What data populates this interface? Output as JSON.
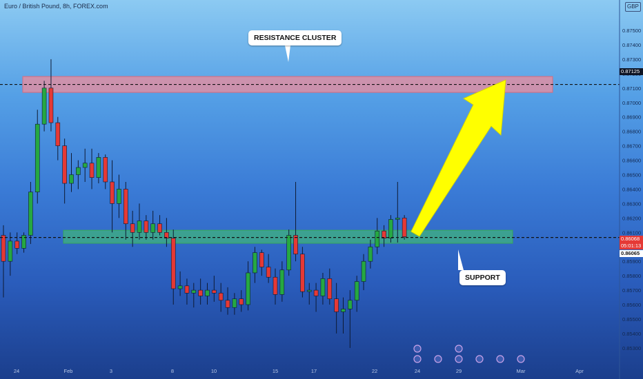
{
  "symbol_title": "Euro / British Pound, 8h, FOREX.com",
  "currency_badge": "GBP",
  "annotations": {
    "resistance_label": "RESISTANCE CLUSTER",
    "support_label": "SUPPORT"
  },
  "price_tags": {
    "resistance_level": "0.87125",
    "current_price": "0.86068",
    "countdown": "05:01:13",
    "support_level": "0.86065"
  },
  "colors": {
    "up_candle": "#26a842",
    "down_candle": "#e53935",
    "resistance_zone": "#f28b9a",
    "support_zone": "#43c46a",
    "arrow": "#ffff00"
  },
  "chart_data": {
    "type": "candlestick",
    "y_axis_ticks": [
      "0.87500",
      "0.87400",
      "0.87300",
      "0.87200",
      "0.87100",
      "0.87000",
      "0.86900",
      "0.86800",
      "0.86700",
      "0.86600",
      "0.86500",
      "0.86400",
      "0.86300",
      "0.86200",
      "0.86100",
      "0.86000",
      "0.85900",
      "0.85800",
      "0.85700",
      "0.85600",
      "0.85500",
      "0.85400",
      "0.85300"
    ],
    "y_axis_tick_values": [
      0.875,
      0.874,
      0.873,
      0.872,
      0.871,
      0.87,
      0.869,
      0.868,
      0.867,
      0.866,
      0.865,
      0.864,
      0.863,
      0.862,
      0.861,
      0.86,
      0.859,
      0.858,
      0.857,
      0.856,
      0.855,
      0.854,
      0.853
    ],
    "x_axis_ticks": [
      "24",
      "Feb",
      "3",
      "8",
      "10",
      "15",
      "17",
      "22",
      "24",
      "29",
      "Mar",
      "Apr"
    ],
    "resistance_zone": [
      0.8707,
      0.8718
    ],
    "support_zone": [
      0.86025,
      0.86115
    ],
    "resistance_line": 0.87125,
    "support_line": 0.86065,
    "candles": [
      {
        "o": 0.8608,
        "h": 0.8615,
        "l": 0.8565,
        "c": 0.859
      },
      {
        "o": 0.859,
        "h": 0.861,
        "l": 0.858,
        "c": 0.8604
      },
      {
        "o": 0.8604,
        "h": 0.861,
        "l": 0.8595,
        "c": 0.8599
      },
      {
        "o": 0.8599,
        "h": 0.861,
        "l": 0.8596,
        "c": 0.8608
      },
      {
        "o": 0.8608,
        "h": 0.8645,
        "l": 0.8602,
        "c": 0.8638
      },
      {
        "o": 0.8638,
        "h": 0.8695,
        "l": 0.863,
        "c": 0.8685
      },
      {
        "o": 0.8685,
        "h": 0.8715,
        "l": 0.868,
        "c": 0.871
      },
      {
        "o": 0.871,
        "h": 0.873,
        "l": 0.868,
        "c": 0.8686
      },
      {
        "o": 0.8686,
        "h": 0.869,
        "l": 0.866,
        "c": 0.867
      },
      {
        "o": 0.867,
        "h": 0.8675,
        "l": 0.863,
        "c": 0.8644
      },
      {
        "o": 0.8644,
        "h": 0.8665,
        "l": 0.8638,
        "c": 0.865
      },
      {
        "o": 0.865,
        "h": 0.866,
        "l": 0.864,
        "c": 0.8655
      },
      {
        "o": 0.8655,
        "h": 0.8668,
        "l": 0.8645,
        "c": 0.8658
      },
      {
        "o": 0.8658,
        "h": 0.8668,
        "l": 0.864,
        "c": 0.8648
      },
      {
        "o": 0.8648,
        "h": 0.8665,
        "l": 0.8644,
        "c": 0.8662
      },
      {
        "o": 0.8662,
        "h": 0.8664,
        "l": 0.864,
        "c": 0.8645
      },
      {
        "o": 0.8645,
        "h": 0.866,
        "l": 0.861,
        "c": 0.863
      },
      {
        "o": 0.863,
        "h": 0.865,
        "l": 0.862,
        "c": 0.864
      },
      {
        "o": 0.864,
        "h": 0.8645,
        "l": 0.8605,
        "c": 0.8616
      },
      {
        "o": 0.8616,
        "h": 0.8625,
        "l": 0.86,
        "c": 0.861
      },
      {
        "o": 0.861,
        "h": 0.863,
        "l": 0.8605,
        "c": 0.8618
      },
      {
        "o": 0.8618,
        "h": 0.8622,
        "l": 0.8605,
        "c": 0.861
      },
      {
        "o": 0.861,
        "h": 0.8625,
        "l": 0.8605,
        "c": 0.8616
      },
      {
        "o": 0.8616,
        "h": 0.8622,
        "l": 0.8608,
        "c": 0.861
      },
      {
        "o": 0.861,
        "h": 0.862,
        "l": 0.86,
        "c": 0.8606
      },
      {
        "o": 0.8606,
        "h": 0.8612,
        "l": 0.856,
        "c": 0.8571
      },
      {
        "o": 0.8571,
        "h": 0.8583,
        "l": 0.8566,
        "c": 0.8573
      },
      {
        "o": 0.8573,
        "h": 0.8578,
        "l": 0.856,
        "c": 0.8568
      },
      {
        "o": 0.8568,
        "h": 0.8575,
        "l": 0.8558,
        "c": 0.857
      },
      {
        "o": 0.857,
        "h": 0.8578,
        "l": 0.856,
        "c": 0.8566
      },
      {
        "o": 0.8566,
        "h": 0.8575,
        "l": 0.856,
        "c": 0.857
      },
      {
        "o": 0.857,
        "h": 0.858,
        "l": 0.8562,
        "c": 0.8568
      },
      {
        "o": 0.8568,
        "h": 0.8575,
        "l": 0.8555,
        "c": 0.8563
      },
      {
        "o": 0.8563,
        "h": 0.8572,
        "l": 0.8553,
        "c": 0.8558
      },
      {
        "o": 0.8558,
        "h": 0.8568,
        "l": 0.8553,
        "c": 0.8564
      },
      {
        "o": 0.8564,
        "h": 0.857,
        "l": 0.8555,
        "c": 0.856
      },
      {
        "o": 0.856,
        "h": 0.859,
        "l": 0.8556,
        "c": 0.8582
      },
      {
        "o": 0.8582,
        "h": 0.86,
        "l": 0.8575,
        "c": 0.8596
      },
      {
        "o": 0.8596,
        "h": 0.8598,
        "l": 0.858,
        "c": 0.8586
      },
      {
        "o": 0.8586,
        "h": 0.8595,
        "l": 0.8575,
        "c": 0.8579
      },
      {
        "o": 0.8579,
        "h": 0.8585,
        "l": 0.856,
        "c": 0.8567
      },
      {
        "o": 0.8567,
        "h": 0.859,
        "l": 0.8562,
        "c": 0.8584
      },
      {
        "o": 0.8584,
        "h": 0.8612,
        "l": 0.858,
        "c": 0.8608
      },
      {
        "o": 0.8608,
        "h": 0.8645,
        "l": 0.859,
        "c": 0.8595
      },
      {
        "o": 0.8595,
        "h": 0.86,
        "l": 0.8565,
        "c": 0.8569
      },
      {
        "o": 0.8569,
        "h": 0.8575,
        "l": 0.856,
        "c": 0.857
      },
      {
        "o": 0.857,
        "h": 0.8575,
        "l": 0.8555,
        "c": 0.8566
      },
      {
        "o": 0.8566,
        "h": 0.8582,
        "l": 0.856,
        "c": 0.8578
      },
      {
        "o": 0.8578,
        "h": 0.8585,
        "l": 0.856,
        "c": 0.8564
      },
      {
        "o": 0.8564,
        "h": 0.8575,
        "l": 0.854,
        "c": 0.8555
      },
      {
        "o": 0.8555,
        "h": 0.8565,
        "l": 0.854,
        "c": 0.8557
      },
      {
        "o": 0.8557,
        "h": 0.857,
        "l": 0.853,
        "c": 0.8563
      },
      {
        "o": 0.8563,
        "h": 0.858,
        "l": 0.8555,
        "c": 0.8576
      },
      {
        "o": 0.8576,
        "h": 0.8595,
        "l": 0.857,
        "c": 0.859
      },
      {
        "o": 0.859,
        "h": 0.8605,
        "l": 0.8585,
        "c": 0.86
      },
      {
        "o": 0.86,
        "h": 0.862,
        "l": 0.8595,
        "c": 0.8611
      },
      {
        "o": 0.8611,
        "h": 0.8615,
        "l": 0.86,
        "c": 0.8606
      },
      {
        "o": 0.8606,
        "h": 0.8622,
        "l": 0.8603,
        "c": 0.8619
      },
      {
        "o": 0.8619,
        "h": 0.8645,
        "l": 0.8603,
        "c": 0.862
      },
      {
        "o": 0.862,
        "h": 0.8622,
        "l": 0.8605,
        "c": 0.8607
      }
    ]
  }
}
